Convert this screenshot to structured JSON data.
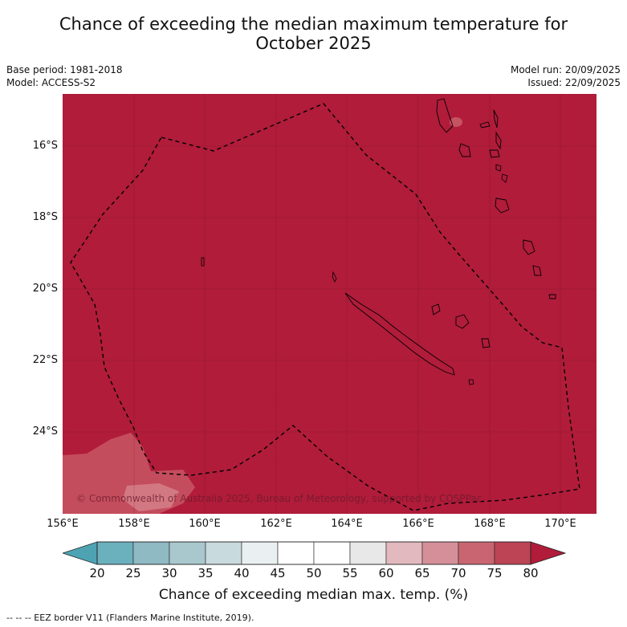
{
  "title_line1": "Chance of exceeding the median maximum temperature for",
  "title_line2": "October 2025",
  "base_period": "Base period: 1981-2018",
  "model": "Model: ACCESS-S2",
  "model_run": "Model run: 20/09/2025",
  "issued": "Issued: 22/09/2025",
  "lat_labels": [
    "16°S",
    "18°S",
    "20°S",
    "22°S",
    "24°S"
  ],
  "lon_labels": [
    "156°E",
    "158°E",
    "160°E",
    "162°E",
    "164°E",
    "166°E",
    "168°E",
    "170°E"
  ],
  "copyright": "© Commonwealth of Australia 2025, Bureau of Meteorology, supported by COSPPac",
  "colorbar": {
    "ticks": [
      "20",
      "25",
      "30",
      "35",
      "40",
      "45",
      "50",
      "55",
      "60",
      "65",
      "70",
      "75",
      "80"
    ],
    "colors": [
      "#4ea3b3",
      "#6bb0bd",
      "#8fb9c3",
      "#a9c8cd",
      "#c9dade",
      "#eaf0f1",
      "#ffffff",
      "#ffffff",
      "#e8e8e8",
      "#e2b9be",
      "#d58f98",
      "#c96570",
      "#bc4455",
      "#b01c3a"
    ],
    "label": "Chance of exceeding median max. temp. (%)"
  },
  "legend": "--  --  -- EEZ border V11 (Flanders Marine Institute, 2019).",
  "map_colors": {
    "background": "#b01c3a",
    "patch": "#c65362"
  }
}
